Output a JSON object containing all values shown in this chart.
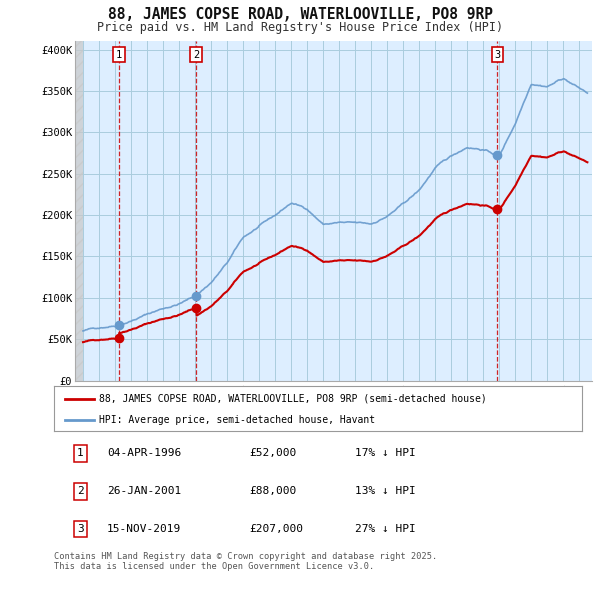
{
  "title": "88, JAMES COPSE ROAD, WATERLOOVILLE, PO8 9RP",
  "subtitle": "Price paid vs. HM Land Registry's House Price Index (HPI)",
  "background_color": "#ffffff",
  "plot_bg_color": "#ddeeff",
  "grid_color": "#aaccdd",
  "hpi_color": "#6699cc",
  "price_color": "#cc0000",
  "sales": [
    {
      "label": "1",
      "date_num": 1996.26,
      "price": 52000
    },
    {
      "label": "2",
      "date_num": 2001.07,
      "price": 88000
    },
    {
      "label": "3",
      "date_num": 2019.87,
      "price": 207000
    }
  ],
  "legend_items": [
    {
      "label": "88, JAMES COPSE ROAD, WATERLOOVILLE, PO8 9RP (semi-detached house)",
      "color": "#cc0000"
    },
    {
      "label": "HPI: Average price, semi-detached house, Havant",
      "color": "#6699cc"
    }
  ],
  "table_rows": [
    {
      "num": "1",
      "date": "04-APR-1996",
      "price": "£52,000",
      "pct": "17% ↓ HPI"
    },
    {
      "num": "2",
      "date": "26-JAN-2001",
      "price": "£88,000",
      "pct": "13% ↓ HPI"
    },
    {
      "num": "3",
      "date": "15-NOV-2019",
      "price": "£207,000",
      "pct": "27% ↓ HPI"
    }
  ],
  "footer": "Contains HM Land Registry data © Crown copyright and database right 2025.\nThis data is licensed under the Open Government Licence v3.0.",
  "ylim": [
    0,
    410000
  ],
  "xlim": [
    1993.5,
    2025.8
  ],
  "yticks": [
    0,
    50000,
    100000,
    150000,
    200000,
    250000,
    300000,
    350000,
    400000
  ],
  "hpi_key_x": [
    1994,
    1995,
    1996,
    1997,
    1998,
    1999,
    2000,
    2001,
    2002,
    2003,
    2004,
    2005,
    2006,
    2007,
    2008,
    2009,
    2010,
    2011,
    2012,
    2013,
    2014,
    2015,
    2016,
    2017,
    2018,
    2019,
    2020,
    2021,
    2022,
    2023,
    2024,
    2025.5
  ],
  "hpi_key_y": [
    60000,
    64000,
    68000,
    75000,
    83000,
    90000,
    96000,
    105000,
    122000,
    145000,
    175000,
    188000,
    200000,
    215000,
    208000,
    190000,
    192000,
    190000,
    188000,
    198000,
    212000,
    228000,
    255000,
    268000,
    280000,
    278000,
    270000,
    310000,
    360000,
    358000,
    368000,
    350000
  ],
  "hpi_noise_seed": 42,
  "hpi_noise_scale": 1200
}
